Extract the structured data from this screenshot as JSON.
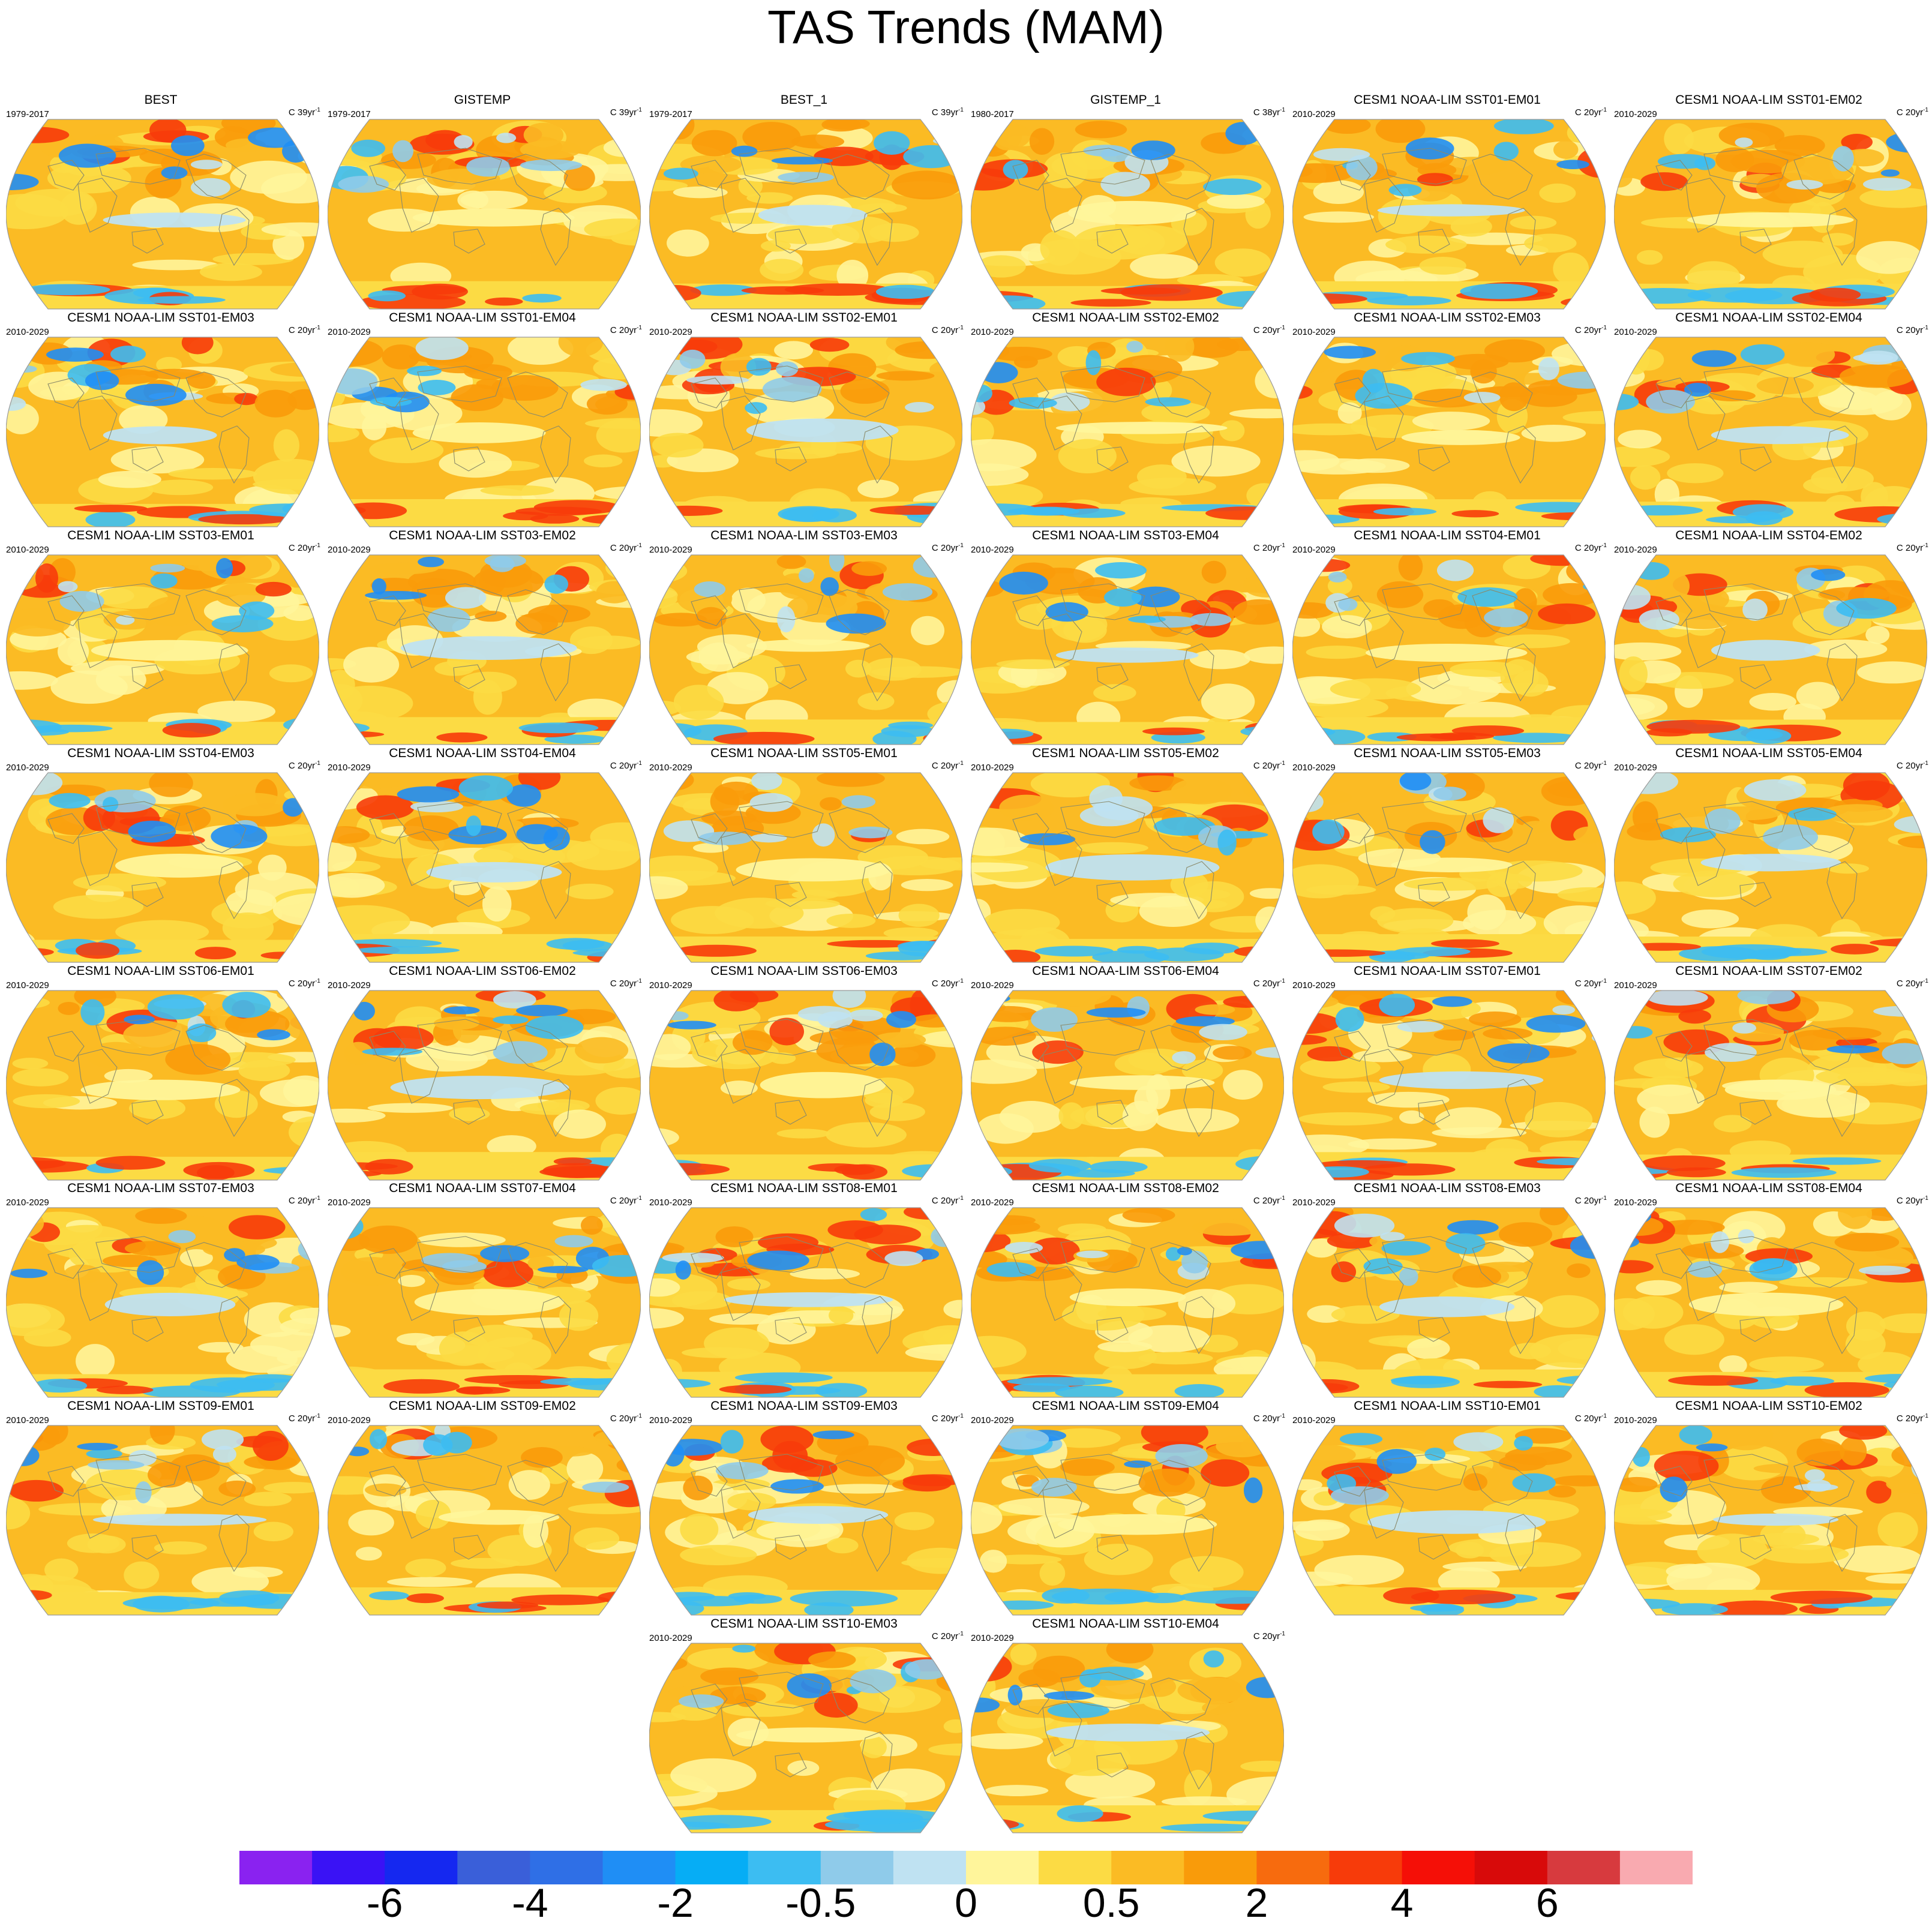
{
  "title": "TAS Trends (MAM)",
  "panels": [
    {
      "name": "BEST",
      "period": "1979-2017",
      "units": "C 39yr",
      "units_exp": "-1",
      "seed": 1
    },
    {
      "name": "GISTEMP",
      "period": "1979-2017",
      "units": "C 39yr",
      "units_exp": "-1",
      "seed": 2
    },
    {
      "name": "BEST_1",
      "period": "1979-2017",
      "units": "C 39yr",
      "units_exp": "-1",
      "seed": 3
    },
    {
      "name": "GISTEMP_1",
      "period": "1980-2017",
      "units": "C 38yr",
      "units_exp": "-1",
      "seed": 4
    },
    {
      "name": "CESM1 NOAA-LIM SST01-EM01",
      "period": "2010-2029",
      "units": "C 20yr",
      "units_exp": "-1",
      "seed": 5
    },
    {
      "name": "CESM1 NOAA-LIM SST01-EM02",
      "period": "2010-2029",
      "units": "C 20yr",
      "units_exp": "-1",
      "seed": 6
    },
    {
      "name": "CESM1 NOAA-LIM SST01-EM03",
      "period": "2010-2029",
      "units": "C 20yr",
      "units_exp": "-1",
      "seed": 7
    },
    {
      "name": "CESM1 NOAA-LIM SST01-EM04",
      "period": "2010-2029",
      "units": "C 20yr",
      "units_exp": "-1",
      "seed": 8
    },
    {
      "name": "CESM1 NOAA-LIM SST02-EM01",
      "period": "2010-2029",
      "units": "C 20yr",
      "units_exp": "-1",
      "seed": 9
    },
    {
      "name": "CESM1 NOAA-LIM SST02-EM02",
      "period": "2010-2029",
      "units": "C 20yr",
      "units_exp": "-1",
      "seed": 10
    },
    {
      "name": "CESM1 NOAA-LIM SST02-EM03",
      "period": "2010-2029",
      "units": "C 20yr",
      "units_exp": "-1",
      "seed": 11
    },
    {
      "name": "CESM1 NOAA-LIM SST02-EM04",
      "period": "2010-2029",
      "units": "C 20yr",
      "units_exp": "-1",
      "seed": 12
    },
    {
      "name": "CESM1 NOAA-LIM SST03-EM01",
      "period": "2010-2029",
      "units": "C 20yr",
      "units_exp": "-1",
      "seed": 13
    },
    {
      "name": "CESM1 NOAA-LIM SST03-EM02",
      "period": "2010-2029",
      "units": "C 20yr",
      "units_exp": "-1",
      "seed": 14
    },
    {
      "name": "CESM1 NOAA-LIM SST03-EM03",
      "period": "2010-2029",
      "units": "C 20yr",
      "units_exp": "-1",
      "seed": 15
    },
    {
      "name": "CESM1 NOAA-LIM SST03-EM04",
      "period": "2010-2029",
      "units": "C 20yr",
      "units_exp": "-1",
      "seed": 16
    },
    {
      "name": "CESM1 NOAA-LIM SST04-EM01",
      "period": "2010-2029",
      "units": "C 20yr",
      "units_exp": "-1",
      "seed": 17
    },
    {
      "name": "CESM1 NOAA-LIM SST04-EM02",
      "period": "2010-2029",
      "units": "C 20yr",
      "units_exp": "-1",
      "seed": 18
    },
    {
      "name": "CESM1 NOAA-LIM SST04-EM03",
      "period": "2010-2029",
      "units": "C 20yr",
      "units_exp": "-1",
      "seed": 19
    },
    {
      "name": "CESM1 NOAA-LIM SST04-EM04",
      "period": "2010-2029",
      "units": "C 20yr",
      "units_exp": "-1",
      "seed": 20
    },
    {
      "name": "CESM1 NOAA-LIM SST05-EM01",
      "period": "2010-2029",
      "units": "C 20yr",
      "units_exp": "-1",
      "seed": 21
    },
    {
      "name": "CESM1 NOAA-LIM SST05-EM02",
      "period": "2010-2029",
      "units": "C 20yr",
      "units_exp": "-1",
      "seed": 22
    },
    {
      "name": "CESM1 NOAA-LIM SST05-EM03",
      "period": "2010-2029",
      "units": "C 20yr",
      "units_exp": "-1",
      "seed": 23
    },
    {
      "name": "CESM1 NOAA-LIM SST05-EM04",
      "period": "2010-2029",
      "units": "C 20yr",
      "units_exp": "-1",
      "seed": 24
    },
    {
      "name": "CESM1 NOAA-LIM SST06-EM01",
      "period": "2010-2029",
      "units": "C 20yr",
      "units_exp": "-1",
      "seed": 25
    },
    {
      "name": "CESM1 NOAA-LIM SST06-EM02",
      "period": "2010-2029",
      "units": "C 20yr",
      "units_exp": "-1",
      "seed": 26
    },
    {
      "name": "CESM1 NOAA-LIM SST06-EM03",
      "period": "2010-2029",
      "units": "C 20yr",
      "units_exp": "-1",
      "seed": 27
    },
    {
      "name": "CESM1 NOAA-LIM SST06-EM04",
      "period": "2010-2029",
      "units": "C 20yr",
      "units_exp": "-1",
      "seed": 28
    },
    {
      "name": "CESM1 NOAA-LIM SST07-EM01",
      "period": "2010-2029",
      "units": "C 20yr",
      "units_exp": "-1",
      "seed": 29
    },
    {
      "name": "CESM1 NOAA-LIM SST07-EM02",
      "period": "2010-2029",
      "units": "C 20yr",
      "units_exp": "-1",
      "seed": 30
    },
    {
      "name": "CESM1 NOAA-LIM SST07-EM03",
      "period": "2010-2029",
      "units": "C 20yr",
      "units_exp": "-1",
      "seed": 31
    },
    {
      "name": "CESM1 NOAA-LIM SST07-EM04",
      "period": "2010-2029",
      "units": "C 20yr",
      "units_exp": "-1",
      "seed": 32
    },
    {
      "name": "CESM1 NOAA-LIM SST08-EM01",
      "period": "2010-2029",
      "units": "C 20yr",
      "units_exp": "-1",
      "seed": 33
    },
    {
      "name": "CESM1 NOAA-LIM SST08-EM02",
      "period": "2010-2029",
      "units": "C 20yr",
      "units_exp": "-1",
      "seed": 34
    },
    {
      "name": "CESM1 NOAA-LIM SST08-EM03",
      "period": "2010-2029",
      "units": "C 20yr",
      "units_exp": "-1",
      "seed": 35
    },
    {
      "name": "CESM1 NOAA-LIM SST08-EM04",
      "period": "2010-2029",
      "units": "C 20yr",
      "units_exp": "-1",
      "seed": 36
    },
    {
      "name": "CESM1 NOAA-LIM SST09-EM01",
      "period": "2010-2029",
      "units": "C 20yr",
      "units_exp": "-1",
      "seed": 37
    },
    {
      "name": "CESM1 NOAA-LIM SST09-EM02",
      "period": "2010-2029",
      "units": "C 20yr",
      "units_exp": "-1",
      "seed": 38
    },
    {
      "name": "CESM1 NOAA-LIM SST09-EM03",
      "period": "2010-2029",
      "units": "C 20yr",
      "units_exp": "-1",
      "seed": 39
    },
    {
      "name": "CESM1 NOAA-LIM SST09-EM04",
      "period": "2010-2029",
      "units": "C 20yr",
      "units_exp": "-1",
      "seed": 40
    },
    {
      "name": "CESM1 NOAA-LIM SST10-EM01",
      "period": "2010-2029",
      "units": "C 20yr",
      "units_exp": "-1",
      "seed": 41
    },
    {
      "name": "CESM1 NOAA-LIM SST10-EM02",
      "period": "2010-2029",
      "units": "C 20yr",
      "units_exp": "-1",
      "seed": 42
    },
    {
      "name": "CESM1 NOAA-LIM SST10-EM03",
      "period": "2010-2029",
      "units": "C 20yr",
      "units_exp": "-1",
      "seed": 43
    },
    {
      "name": "CESM1 NOAA-LIM SST10-EM04",
      "period": "2010-2029",
      "units": "C 20yr",
      "units_exp": "-1",
      "seed": 44
    }
  ],
  "colorbar": {
    "colors": [
      "#8a22f0",
      "#3a12f5",
      "#1528f0",
      "#3a5fd9",
      "#2f6fe6",
      "#1f8ef5",
      "#06adf5",
      "#3cbdf2",
      "#8fcbea",
      "#bfe2f2",
      "#fff59b",
      "#fcdb44",
      "#fbbb24",
      "#f99b0a",
      "#f76b0e",
      "#f73b0a",
      "#f50f07",
      "#d80a0a",
      "#d73a3e",
      "#f9aab0"
    ],
    "labels": [
      {
        "text": "-6",
        "boundary": 2
      },
      {
        "text": "-4",
        "boundary": 4
      },
      {
        "text": "-2",
        "boundary": 6
      },
      {
        "text": "-0.5",
        "boundary": 8
      },
      {
        "text": "0",
        "boundary": 10
      },
      {
        "text": "0.5",
        "boundary": 12
      },
      {
        "text": "2",
        "boundary": 14
      },
      {
        "text": "4",
        "boundary": 16
      },
      {
        "text": "6",
        "boundary": 18
      }
    ]
  }
}
